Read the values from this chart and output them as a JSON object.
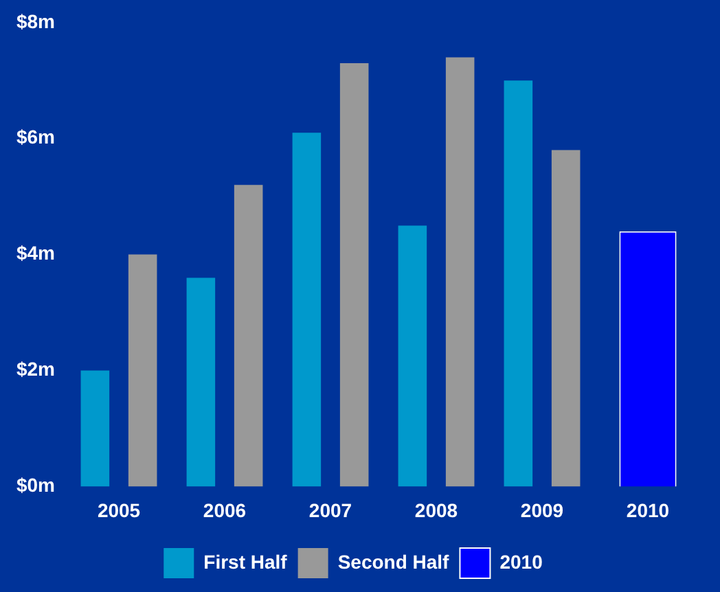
{
  "chart_data": {
    "type": "bar",
    "categories": [
      "2005",
      "2006",
      "2007",
      "2008",
      "2009",
      "2010"
    ],
    "series": [
      {
        "name": "First Half",
        "color": "#0099cc",
        "values": [
          2.0,
          3.6,
          6.1,
          4.5,
          7.0,
          null
        ]
      },
      {
        "name": "Second Half",
        "color": "#999999",
        "values": [
          4.0,
          5.2,
          7.3,
          7.4,
          5.8,
          null
        ]
      },
      {
        "name": "2010",
        "color": "#0000ff",
        "values": [
          null,
          null,
          null,
          null,
          null,
          4.4
        ]
      }
    ],
    "ylim": [
      0,
      8
    ],
    "yticks": [
      {
        "value": 0,
        "label": "$0m"
      },
      {
        "value": 2,
        "label": "$2m"
      },
      {
        "value": 4,
        "label": "$4m"
      },
      {
        "value": 6,
        "label": "$6m"
      },
      {
        "value": 8,
        "label": "$8m"
      }
    ],
    "grid": false,
    "legend": "bottom"
  }
}
